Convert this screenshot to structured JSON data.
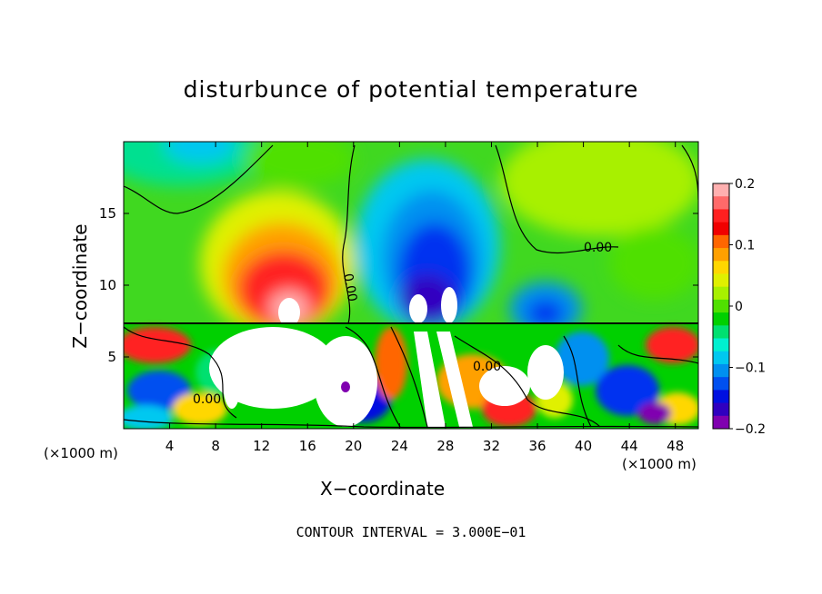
{
  "chart_data": {
    "type": "heatmap",
    "title": "disturbunce of potential temperature",
    "xlabel": "X−coordinate",
    "ylabel": "Z−coordinate",
    "x_unit": "(×1000 m)",
    "x_ticks": [
      "4",
      "8",
      "12",
      "16",
      "20",
      "24",
      "28",
      "32",
      "36",
      "40",
      "44",
      "48"
    ],
    "y_ticks": [
      "5",
      "10",
      "15"
    ],
    "xlim": [
      0,
      50
    ],
    "ylim": [
      0,
      20
    ],
    "colorbar": {
      "ticks": [
        "0.2",
        "0.1",
        "0",
        "−0.1",
        "−0.2"
      ],
      "range": [
        -0.2,
        0.2
      ],
      "colors": [
        "#ffb0b0",
        "#ff6a6a",
        "#ff2020",
        "#f00000",
        "#ff6600",
        "#ffa000",
        "#ffd700",
        "#e0f000",
        "#a8f000",
        "#50e000",
        "#00d000",
        "#00e070",
        "#00f0d0",
        "#00c8f0",
        "#0090f0",
        "#0050f0",
        "#0010e0",
        "#3000c0",
        "#8000b0"
      ],
      "placement": "right"
    },
    "contour_labels": [
      "0.00",
      "0.00",
      "0.00",
      "0.00"
    ],
    "features": [
      {
        "kind": "warm anomaly",
        "x": 14.5,
        "z": 11,
        "value": 0.2
      },
      {
        "kind": "cold anomaly",
        "x": 27,
        "z": 11,
        "value": -0.2
      },
      {
        "kind": "cold anomaly",
        "x": 37,
        "z": 8.5,
        "value": -0.1
      }
    ],
    "footer": "CONTOUR INTERVAL = 3.000E−01",
    "grid": false
  }
}
